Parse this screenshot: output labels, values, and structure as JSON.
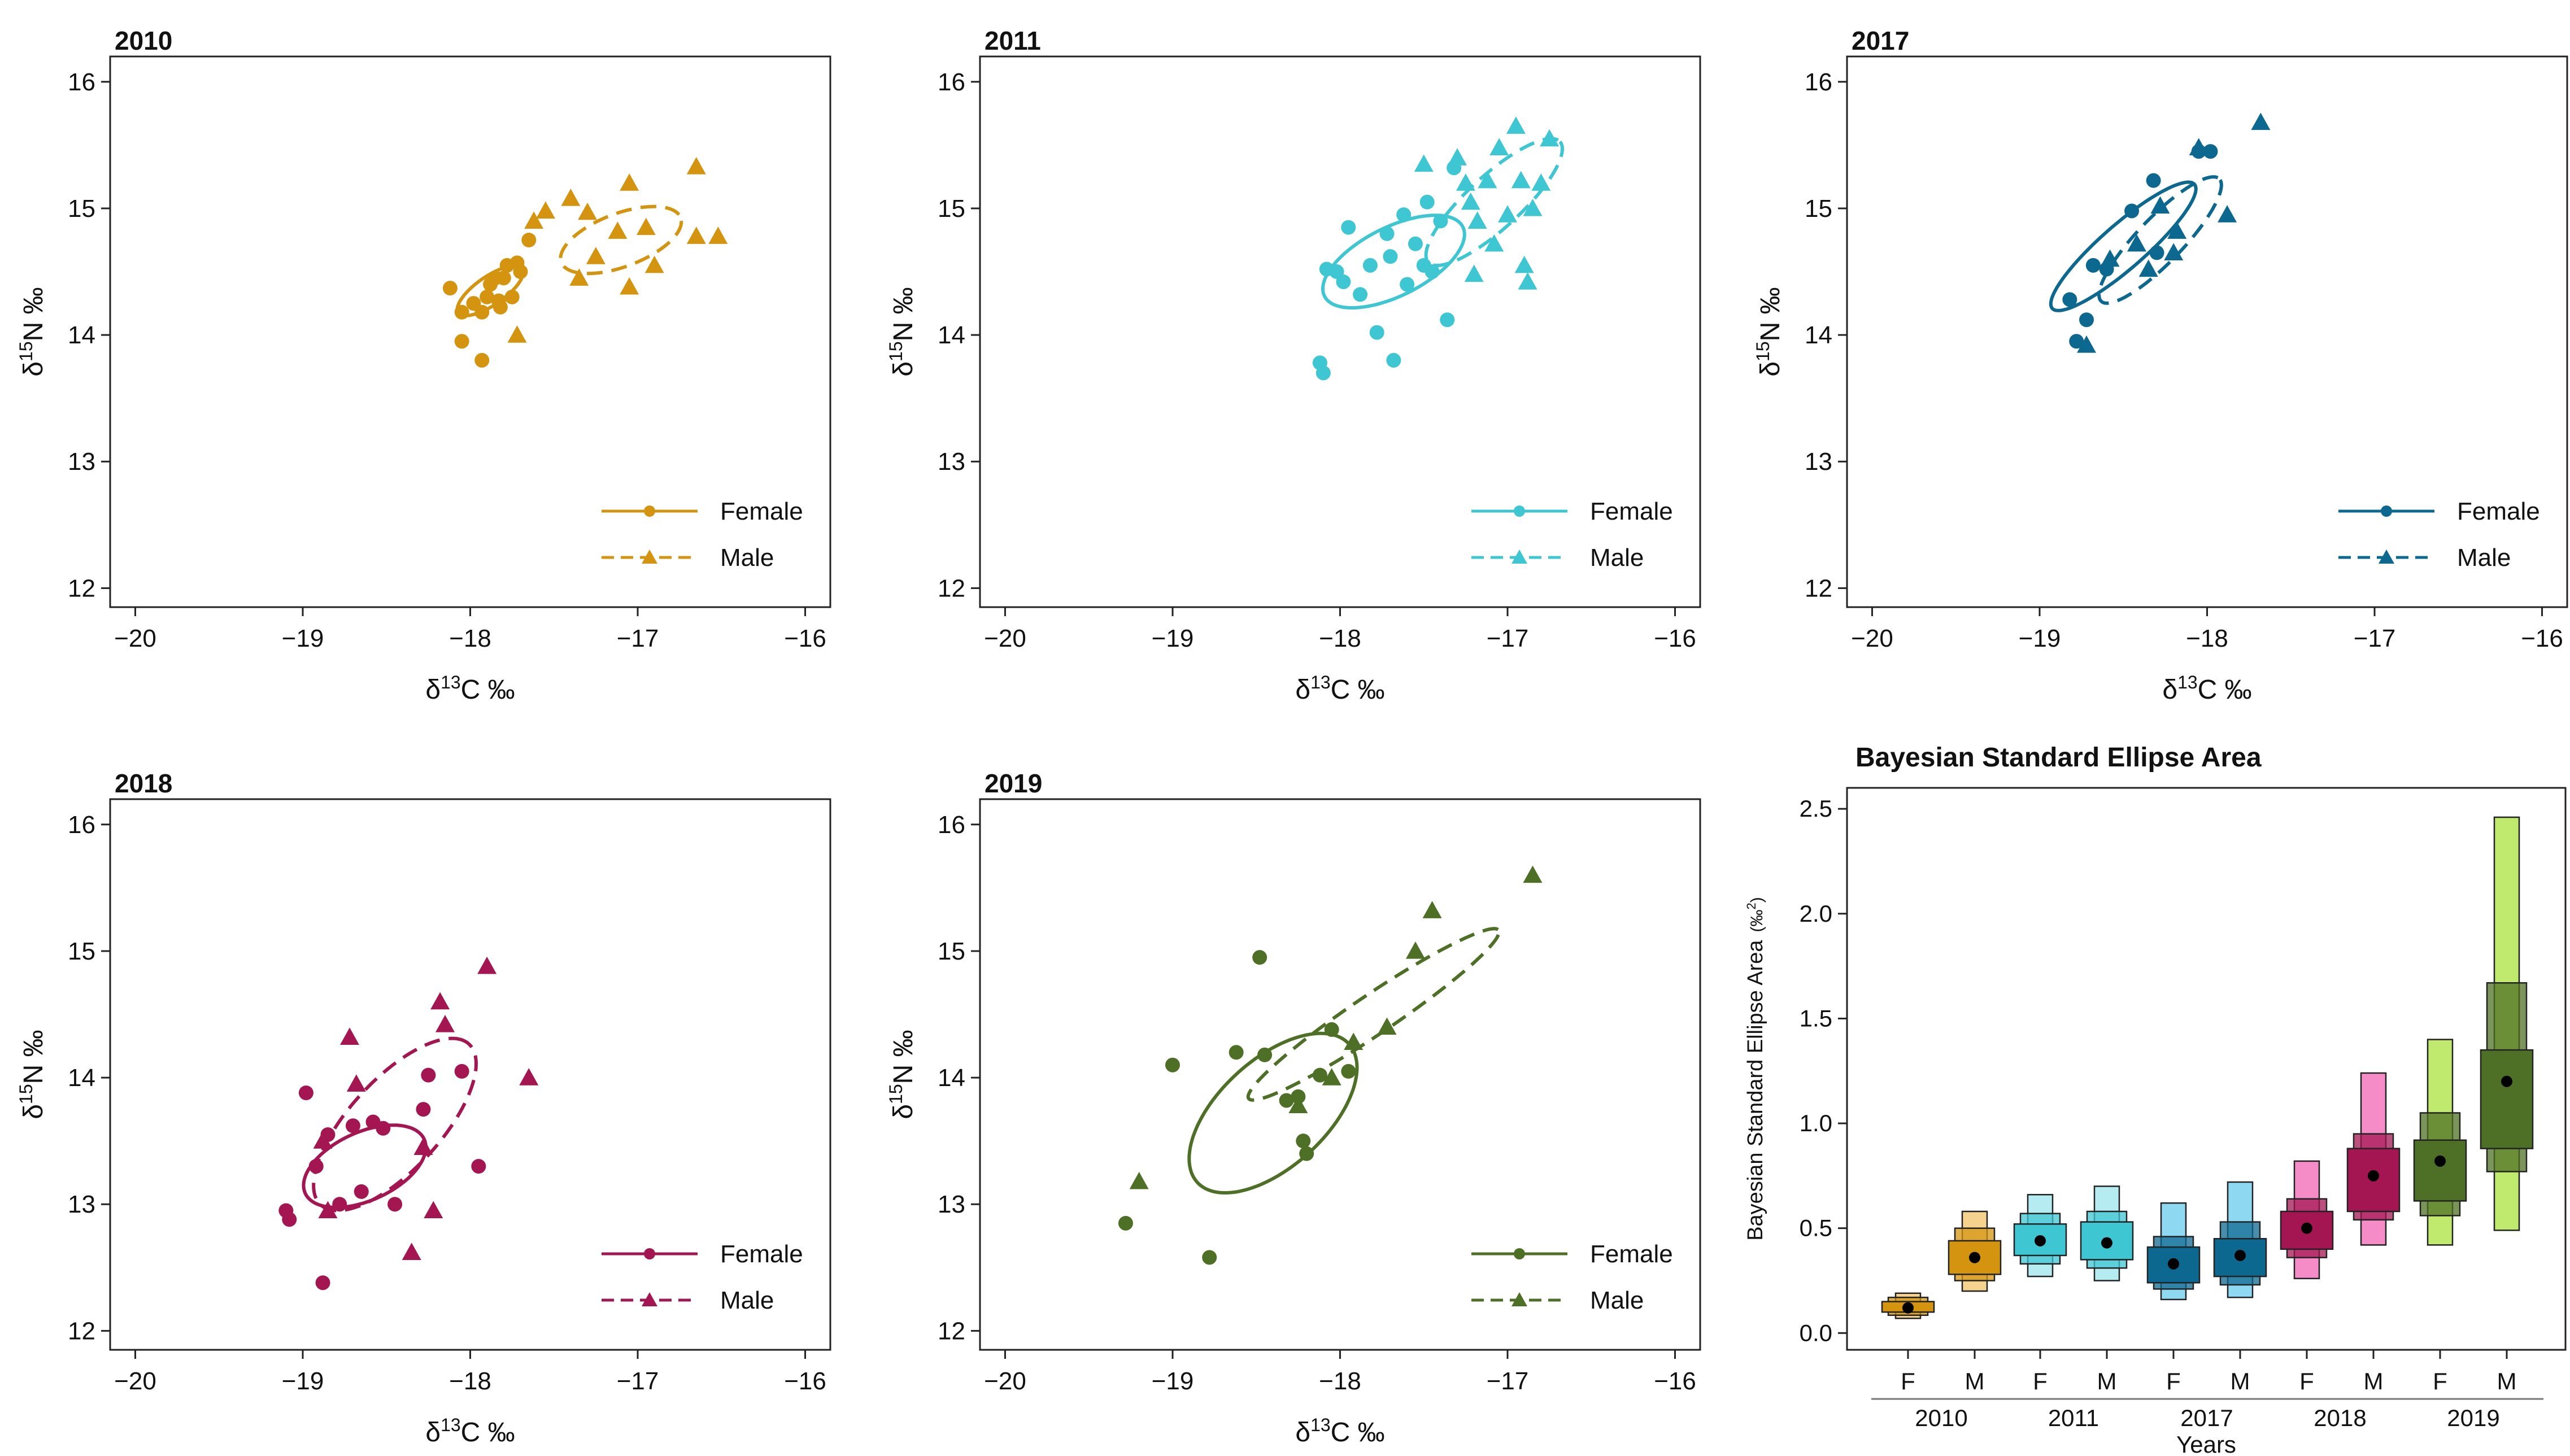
{
  "legend_labels": {
    "female": "Female",
    "male": "Male"
  },
  "axis_labels": {
    "x_prefix": "δ",
    "x_sup": "13",
    "x_suffix": "C ‰",
    "y_prefix": "δ",
    "y_sup": "15",
    "y_suffix": "N ‰"
  },
  "chart_data": [
    {
      "type": "scatter",
      "title": "2010",
      "color": "#D4940F",
      "xlim": [
        -20.15,
        -15.85
      ],
      "ylim": [
        11.85,
        16.2
      ],
      "xticks": [
        -20,
        -19,
        -18,
        -17,
        -16
      ],
      "yticks": [
        12,
        13,
        14,
        15,
        16
      ],
      "xtick_labels": [
        "−20",
        "−19",
        "−18",
        "−17",
        "−16"
      ],
      "ytick_labels": [
        "12",
        "13",
        "14",
        "15",
        "16"
      ],
      "series": [
        {
          "name": "Female",
          "marker": "circle",
          "points": [
            [
              -18.12,
              14.37
            ],
            [
              -18.05,
              14.18
            ],
            [
              -17.98,
              14.25
            ],
            [
              -17.93,
              14.18
            ],
            [
              -17.9,
              14.3
            ],
            [
              -17.85,
              14.45
            ],
            [
              -17.82,
              14.22
            ],
            [
              -17.78,
              14.55
            ],
            [
              -17.72,
              14.57
            ],
            [
              -17.83,
              14.27
            ],
            [
              -17.7,
              14.5
            ],
            [
              -17.65,
              14.75
            ],
            [
              -18.05,
              13.95
            ],
            [
              -17.93,
              13.8
            ],
            [
              -17.8,
              14.45
            ],
            [
              -17.75,
              14.3
            ],
            [
              -17.88,
              14.4
            ]
          ],
          "ellipse": {
            "cx": -17.88,
            "cy": 14.35,
            "a": 0.26,
            "b": 0.1,
            "angle": 45
          }
        },
        {
          "name": "Male",
          "marker": "triangle",
          "points": [
            [
              -17.62,
              14.9
            ],
            [
              -17.55,
              14.98
            ],
            [
              -17.4,
              15.08
            ],
            [
              -17.3,
              14.97
            ],
            [
              -17.05,
              15.2
            ],
            [
              -17.12,
              14.82
            ],
            [
              -16.95,
              14.85
            ],
            [
              -16.9,
              14.55
            ],
            [
              -16.65,
              15.33
            ],
            [
              -16.65,
              14.78
            ],
            [
              -16.52,
              14.78
            ],
            [
              -17.35,
              14.45
            ],
            [
              -17.05,
              14.38
            ],
            [
              -17.72,
              14.0
            ],
            [
              -17.25,
              14.62
            ]
          ],
          "ellipse": {
            "cx": -17.1,
            "cy": 14.75,
            "a": 0.4,
            "b": 0.2,
            "angle": 30
          }
        }
      ]
    },
    {
      "type": "scatter",
      "title": "2011",
      "color": "#3FC6D3",
      "xlim": [
        -20.15,
        -15.85
      ],
      "ylim": [
        11.85,
        16.2
      ],
      "xticks": [
        -20,
        -19,
        -18,
        -17,
        -16
      ],
      "yticks": [
        12,
        13,
        14,
        15,
        16
      ],
      "xtick_labels": [
        "−20",
        "−19",
        "−18",
        "−17",
        "−16"
      ],
      "ytick_labels": [
        "12",
        "13",
        "14",
        "15",
        "16"
      ],
      "series": [
        {
          "name": "Female",
          "marker": "circle",
          "points": [
            [
              -18.12,
              13.78
            ],
            [
              -18.1,
              13.7
            ],
            [
              -18.08,
              14.52
            ],
            [
              -18.02,
              14.5
            ],
            [
              -17.98,
              14.42
            ],
            [
              -17.95,
              14.85
            ],
            [
              -17.88,
              14.32
            ],
            [
              -17.82,
              14.55
            ],
            [
              -17.78,
              14.02
            ],
            [
              -17.72,
              14.8
            ],
            [
              -17.7,
              14.62
            ],
            [
              -17.68,
              13.8
            ],
            [
              -17.62,
              14.95
            ],
            [
              -17.55,
              14.72
            ],
            [
              -17.5,
              14.55
            ],
            [
              -17.48,
              15.05
            ],
            [
              -17.45,
              14.5
            ],
            [
              -17.4,
              14.9
            ],
            [
              -17.36,
              14.12
            ],
            [
              -17.32,
              15.32
            ],
            [
              -17.6,
              14.4
            ]
          ],
          "ellipse": {
            "cx": -17.68,
            "cy": 14.58,
            "a": 0.5,
            "b": 0.25,
            "angle": 38
          }
        },
        {
          "name": "Male",
          "marker": "triangle",
          "points": [
            [
              -17.5,
              15.35
            ],
            [
              -17.3,
              15.4
            ],
            [
              -17.25,
              15.2
            ],
            [
              -17.22,
              15.05
            ],
            [
              -17.18,
              14.9
            ],
            [
              -17.12,
              15.22
            ],
            [
              -17.08,
              14.72
            ],
            [
              -17.05,
              15.48
            ],
            [
              -16.95,
              15.65
            ],
            [
              -16.92,
              15.22
            ],
            [
              -16.9,
              14.55
            ],
            [
              -16.88,
              14.42
            ],
            [
              -16.8,
              15.2
            ],
            [
              -16.75,
              15.55
            ],
            [
              -17.2,
              14.48
            ],
            [
              -16.85,
              15.0
            ],
            [
              -17.0,
              14.95
            ]
          ],
          "ellipse": {
            "cx": -17.08,
            "cy": 15.05,
            "a": 0.62,
            "b": 0.18,
            "angle": 52
          }
        }
      ]
    },
    {
      "type": "scatter",
      "title": "2017",
      "color": "#0D6890",
      "xlim": [
        -20.15,
        -15.85
      ],
      "ylim": [
        11.85,
        16.2
      ],
      "xticks": [
        -20,
        -19,
        -18,
        -17,
        -16
      ],
      "yticks": [
        12,
        13,
        14,
        15,
        16
      ],
      "xtick_labels": [
        "−20",
        "−19",
        "−18",
        "−17",
        "−16"
      ],
      "ytick_labels": [
        "12",
        "13",
        "14",
        "15",
        "16"
      ],
      "series": [
        {
          "name": "Female",
          "marker": "circle",
          "points": [
            [
              -18.82,
              14.28
            ],
            [
              -18.78,
              13.95
            ],
            [
              -18.72,
              14.12
            ],
            [
              -18.68,
              14.55
            ],
            [
              -18.45,
              14.98
            ],
            [
              -18.32,
              15.22
            ],
            [
              -18.05,
              15.45
            ],
            [
              -17.98,
              15.45
            ],
            [
              -18.3,
              14.65
            ],
            [
              -18.6,
              14.52
            ]
          ],
          "ellipse": {
            "cx": -18.5,
            "cy": 14.7,
            "a": 0.65,
            "b": 0.15,
            "angle": 50
          }
        },
        {
          "name": "Male",
          "marker": "triangle",
          "points": [
            [
              -18.72,
              13.92
            ],
            [
              -18.58,
              14.6
            ],
            [
              -18.42,
              14.72
            ],
            [
              -18.35,
              14.52
            ],
            [
              -18.28,
              15.02
            ],
            [
              -18.2,
              14.65
            ],
            [
              -18.18,
              14.82
            ],
            [
              -18.05,
              15.48
            ],
            [
              -17.88,
              14.95
            ],
            [
              -17.68,
              15.68
            ]
          ],
          "ellipse": {
            "cx": -18.28,
            "cy": 14.75,
            "a": 0.6,
            "b": 0.15,
            "angle": 55
          }
        }
      ]
    },
    {
      "type": "scatter",
      "title": "2018",
      "color": "#A31652",
      "xlim": [
        -20.15,
        -15.85
      ],
      "ylim": [
        11.85,
        16.2
      ],
      "xticks": [
        -20,
        -19,
        -18,
        -17,
        -16
      ],
      "yticks": [
        12,
        13,
        14,
        15,
        16
      ],
      "xtick_labels": [
        "−20",
        "−19",
        "−18",
        "−17",
        "−16"
      ],
      "ytick_labels": [
        "12",
        "13",
        "14",
        "15",
        "16"
      ],
      "series": [
        {
          "name": "Female",
          "marker": "circle",
          "points": [
            [
              -19.1,
              12.95
            ],
            [
              -19.08,
              12.88
            ],
            [
              -18.98,
              13.88
            ],
            [
              -18.92,
              13.3
            ],
            [
              -18.88,
              12.38
            ],
            [
              -18.78,
              13.0
            ],
            [
              -18.7,
              13.62
            ],
            [
              -18.65,
              13.1
            ],
            [
              -18.58,
              13.65
            ],
            [
              -18.52,
              13.6
            ],
            [
              -18.45,
              13.0
            ],
            [
              -18.28,
              13.75
            ],
            [
              -18.25,
              14.02
            ],
            [
              -18.05,
              14.05
            ],
            [
              -17.95,
              13.3
            ],
            [
              -18.85,
              13.55
            ]
          ],
          "ellipse": {
            "cx": -18.63,
            "cy": 13.3,
            "a": 0.42,
            "b": 0.25,
            "angle": 38
          }
        },
        {
          "name": "Male",
          "marker": "triangle",
          "points": [
            [
              -18.88,
              13.5
            ],
            [
              -18.72,
              14.32
            ],
            [
              -18.68,
              13.95
            ],
            [
              -18.35,
              12.62
            ],
            [
              -18.28,
              13.45
            ],
            [
              -18.22,
              12.95
            ],
            [
              -18.18,
              14.6
            ],
            [
              -18.15,
              14.42
            ],
            [
              -17.9,
              14.88
            ],
            [
              -17.65,
              14.0
            ],
            [
              -18.85,
              12.95
            ]
          ],
          "ellipse": {
            "cx": -18.45,
            "cy": 13.63,
            "a": 0.78,
            "b": 0.3,
            "angle": 58
          }
        }
      ]
    },
    {
      "type": "scatter",
      "title": "2019",
      "color": "#4E7026",
      "xlim": [
        -20.15,
        -15.85
      ],
      "ylim": [
        11.85,
        16.2
      ],
      "xticks": [
        -20,
        -19,
        -18,
        -17,
        -16
      ],
      "yticks": [
        12,
        13,
        14,
        15,
        16
      ],
      "xtick_labels": [
        "−20",
        "−19",
        "−18",
        "−17",
        "−16"
      ],
      "ytick_labels": [
        "12",
        "13",
        "14",
        "15",
        "16"
      ],
      "series": [
        {
          "name": "Female",
          "marker": "circle",
          "points": [
            [
              -19.28,
              12.85
            ],
            [
              -19.0,
              14.1
            ],
            [
              -18.78,
              12.58
            ],
            [
              -18.62,
              14.2
            ],
            [
              -18.48,
              14.95
            ],
            [
              -18.45,
              14.18
            ],
            [
              -18.32,
              13.82
            ],
            [
              -18.22,
              13.5
            ],
            [
              -18.2,
              13.4
            ],
            [
              -18.12,
              14.02
            ],
            [
              -18.05,
              14.38
            ],
            [
              -17.95,
              14.05
            ],
            [
              -18.25,
              13.85
            ]
          ],
          "ellipse": {
            "cx": -18.4,
            "cy": 13.72,
            "a": 0.72,
            "b": 0.36,
            "angle": 56
          }
        },
        {
          "name": "Male",
          "marker": "triangle",
          "points": [
            [
              -19.2,
              13.18
            ],
            [
              -18.25,
              13.78
            ],
            [
              -17.92,
              14.28
            ],
            [
              -17.72,
              14.4
            ],
            [
              -17.55,
              15.0
            ],
            [
              -17.45,
              15.32
            ],
            [
              -16.85,
              15.6
            ],
            [
              -18.05,
              14.0
            ]
          ],
          "ellipse": {
            "cx": -17.8,
            "cy": 14.5,
            "a": 1.0,
            "b": 0.14,
            "angle": 42
          }
        }
      ]
    },
    {
      "type": "boxplot",
      "title": "Bayesian Standard Ellipse Area",
      "ylabel": "Bayesian Standard Ellipse Area",
      "ylabel_unit_prefix": "(‰",
      "ylabel_unit_sup": "2",
      "ylabel_unit_suffix": ")",
      "xlabel": "Years",
      "ylim": [
        -0.08,
        2.6
      ],
      "yticks": [
        0,
        0.5,
        1,
        1.5,
        2,
        2.5
      ],
      "ytick_labels": [
        "0.0",
        "0.5",
        "1.0",
        "1.5",
        "2.0",
        "2.5"
      ],
      "groups": [
        "2010",
        "2011",
        "2017",
        "2018",
        "2019"
      ],
      "sex_labels": [
        "F",
        "M"
      ],
      "boxes": [
        {
          "group": "2010",
          "sex": "F",
          "color": "#D4940F",
          "light": "#F5D28E",
          "mode": 0.12,
          "ci50": [
            0.1,
            0.15
          ],
          "ci75": [
            0.085,
            0.17
          ],
          "ci95": [
            0.07,
            0.19
          ]
        },
        {
          "group": "2010",
          "sex": "M",
          "color": "#D4940F",
          "light": "#F5D28E",
          "mode": 0.36,
          "ci50": [
            0.28,
            0.44
          ],
          "ci75": [
            0.25,
            0.5
          ],
          "ci95": [
            0.2,
            0.58
          ]
        },
        {
          "group": "2011",
          "sex": "F",
          "color": "#3FC6D3",
          "light": "#B5ECF1",
          "mode": 0.44,
          "ci50": [
            0.37,
            0.52
          ],
          "ci75": [
            0.33,
            0.57
          ],
          "ci95": [
            0.27,
            0.66
          ]
        },
        {
          "group": "2011",
          "sex": "M",
          "color": "#3FC6D3",
          "light": "#B5ECF1",
          "mode": 0.43,
          "ci50": [
            0.35,
            0.53
          ],
          "ci75": [
            0.31,
            0.58
          ],
          "ci95": [
            0.25,
            0.7
          ]
        },
        {
          "group": "2017",
          "sex": "F",
          "color": "#0D6890",
          "light": "#8ED8F2",
          "mode": 0.33,
          "ci50": [
            0.24,
            0.41
          ],
          "ci75": [
            0.21,
            0.46
          ],
          "ci95": [
            0.16,
            0.62
          ]
        },
        {
          "group": "2017",
          "sex": "M",
          "color": "#0D6890",
          "light": "#8ED8F2",
          "mode": 0.37,
          "ci50": [
            0.27,
            0.45
          ],
          "ci75": [
            0.23,
            0.53
          ],
          "ci95": [
            0.17,
            0.72
          ]
        },
        {
          "group": "2018",
          "sex": "F",
          "color": "#A31652",
          "light": "#F58CC7",
          "mode": 0.5,
          "ci50": [
            0.4,
            0.58
          ],
          "ci75": [
            0.36,
            0.64
          ],
          "ci95": [
            0.26,
            0.82
          ]
        },
        {
          "group": "2018",
          "sex": "M",
          "color": "#A31652",
          "light": "#F58CC7",
          "mode": 0.75,
          "ci50": [
            0.58,
            0.88
          ],
          "ci75": [
            0.54,
            0.95
          ],
          "ci95": [
            0.42,
            1.24
          ]
        },
        {
          "group": "2019",
          "sex": "F",
          "color": "#4E7026",
          "light": "#BFEA6E",
          "mode": 0.82,
          "ci50": [
            0.63,
            0.92
          ],
          "ci75": [
            0.56,
            1.05
          ],
          "ci95": [
            0.42,
            1.4
          ]
        },
        {
          "group": "2019",
          "sex": "M",
          "color": "#4E7026",
          "light": "#BFEA6E",
          "mode": 1.2,
          "ci50": [
            0.88,
            1.35
          ],
          "ci75": [
            0.77,
            1.67
          ],
          "ci95": [
            0.49,
            2.46
          ]
        }
      ]
    }
  ]
}
